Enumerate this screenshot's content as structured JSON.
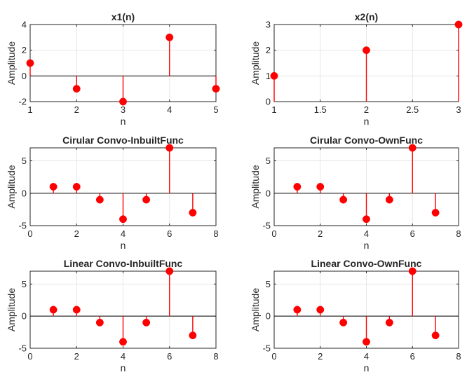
{
  "colors": {
    "stem": "#ff0000",
    "marker": "#ff0000",
    "baseline": "#000000",
    "grid": "#e6e6e6",
    "axes": "#262626"
  },
  "chart_data": [
    {
      "type": "stem",
      "title": "x1(n)",
      "xlabel": "n",
      "ylabel": "Amplitude",
      "xlim": [
        1,
        5
      ],
      "ylim": [
        -2,
        4
      ],
      "xticks": [
        "1",
        "2",
        "3",
        "4",
        "5"
      ],
      "yticks": [
        "-2",
        "0",
        "2",
        "4"
      ],
      "grid": true,
      "x": [
        1,
        2,
        3,
        4,
        5
      ],
      "values": [
        1,
        -1,
        -2,
        3,
        -1
      ]
    },
    {
      "type": "stem",
      "title": "x2(n)",
      "xlabel": "n",
      "ylabel": "Amplitude",
      "xlim": [
        1,
        3
      ],
      "ylim": [
        0,
        3
      ],
      "xticks": [
        "1",
        "1.5",
        "2",
        "2.5",
        "3"
      ],
      "yticks": [
        "0",
        "1",
        "2",
        "3"
      ],
      "grid": true,
      "x": [
        1,
        2,
        3
      ],
      "values": [
        1,
        2,
        3
      ]
    },
    {
      "type": "stem",
      "title": "Cirular Convo-InbuiltFunc",
      "xlabel": "n",
      "ylabel": "Amplitude",
      "xlim": [
        0,
        8
      ],
      "ylim": [
        -5,
        7
      ],
      "xticks": [
        "0",
        "2",
        "4",
        "6",
        "8"
      ],
      "yticks": [
        "-5",
        "0",
        "5"
      ],
      "grid": true,
      "x": [
        1,
        2,
        3,
        4,
        5,
        6,
        7
      ],
      "values": [
        1,
        1,
        -1,
        -4,
        -1,
        7,
        -3
      ]
    },
    {
      "type": "stem",
      "title": "Cirular Convo-OwnFunc",
      "xlabel": "n",
      "ylabel": "Amplitude",
      "xlim": [
        0,
        8
      ],
      "ylim": [
        -5,
        7
      ],
      "xticks": [
        "0",
        "2",
        "4",
        "6",
        "8"
      ],
      "yticks": [
        "-5",
        "0",
        "5"
      ],
      "grid": true,
      "x": [
        1,
        2,
        3,
        4,
        5,
        6,
        7
      ],
      "values": [
        1,
        1,
        -1,
        -4,
        -1,
        7,
        -3
      ]
    },
    {
      "type": "stem",
      "title": "Linear Convo-InbuiltFunc",
      "xlabel": "n",
      "ylabel": "Amplitude",
      "xlim": [
        0,
        8
      ],
      "ylim": [
        -5,
        7
      ],
      "xticks": [
        "0",
        "2",
        "4",
        "6",
        "8"
      ],
      "yticks": [
        "-5",
        "0",
        "5"
      ],
      "grid": true,
      "x": [
        1,
        2,
        3,
        4,
        5,
        6,
        7
      ],
      "values": [
        1,
        1,
        -1,
        -4,
        -1,
        7,
        -3
      ]
    },
    {
      "type": "stem",
      "title": "Linear Convo-OwnFunc",
      "xlabel": "n",
      "ylabel": "Amplitude",
      "xlim": [
        0,
        8
      ],
      "ylim": [
        -5,
        7
      ],
      "xticks": [
        "0",
        "2",
        "4",
        "6",
        "8"
      ],
      "yticks": [
        "-5",
        "0",
        "5"
      ],
      "grid": true,
      "x": [
        1,
        2,
        3,
        4,
        5,
        6,
        7
      ],
      "values": [
        1,
        1,
        -1,
        -4,
        -1,
        7,
        -3
      ]
    }
  ]
}
